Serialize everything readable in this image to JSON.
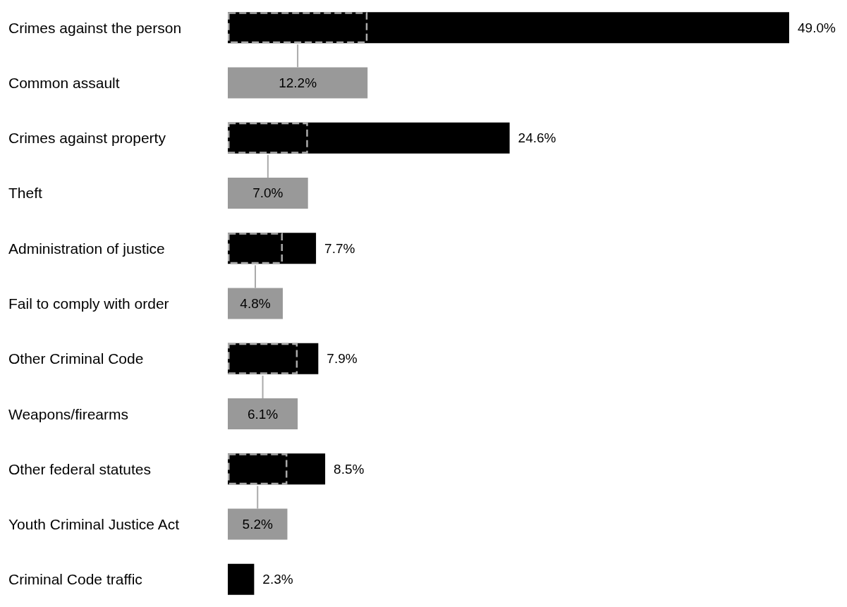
{
  "chart_data": {
    "type": "bar",
    "orientation": "horizontal",
    "categories": [
      "Crimes against the person",
      "Common assault",
      "Crimes against property",
      "Theft",
      "Administration of justice",
      "Fail to comply with order",
      "Other Criminal Code",
      "Weapons/firearms",
      "Other federal statutes",
      "Youth Criminal Justice Act",
      "Criminal Code traffic"
    ],
    "series": [
      {
        "color": "#000000",
        "values": [
          49.0,
          null,
          24.6,
          null,
          7.7,
          null,
          7.9,
          null,
          8.5,
          null,
          2.3
        ],
        "value_labels": [
          "49.0%",
          null,
          "24.6%",
          null,
          "7.7%",
          null,
          "7.9%",
          null,
          "8.5%",
          null,
          "2.3%"
        ]
      },
      {
        "color": "#999999",
        "values": [
          null,
          12.2,
          null,
          7.0,
          null,
          4.8,
          null,
          6.1,
          null,
          5.2,
          null
        ],
        "value_labels": [
          null,
          "12.2%",
          null,
          "7.0%",
          null,
          "4.8%",
          null,
          "6.1%",
          null,
          "5.2%",
          null
        ]
      },
      {
        "color": "#aaaaaa",
        "line_style": "dashed",
        "values": [
          12.2,
          null,
          7.0,
          null,
          4.8,
          null,
          6.1,
          null,
          5.2,
          null,
          null
        ]
      }
    ]
  }
}
